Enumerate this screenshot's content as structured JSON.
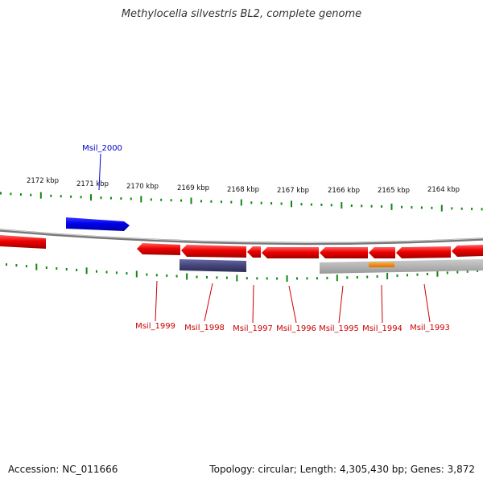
{
  "title": "Methylocella silvestris BL2, complete genome",
  "footer": {
    "accession": "Accession: NC_011666",
    "summary": "Topology: circular; Length: 4,305,430 bp; Genes: 3,872"
  },
  "scale_labels": [
    "2172 kbp",
    "2171 kbp",
    "2170 kbp",
    "2169 kbp",
    "2168 kbp",
    "2167 kbp",
    "2166 kbp",
    "2165 kbp",
    "2164 kbp"
  ],
  "gene_labels": [
    "Msil_2000",
    "Msil_1999",
    "Msil_1998",
    "Msil_1997",
    "Msil_1996",
    "Msil_1995",
    "Msil_1994",
    "Msil_1993"
  ],
  "colors": {
    "forward_gene": "#0000ee",
    "reverse_gene": "#ee0000",
    "tick": "#118811",
    "backbone": "#888888",
    "rna_purple": "#44447a",
    "gray_feature": "#aaaaaa",
    "orange_feature": "#ff8800"
  }
}
